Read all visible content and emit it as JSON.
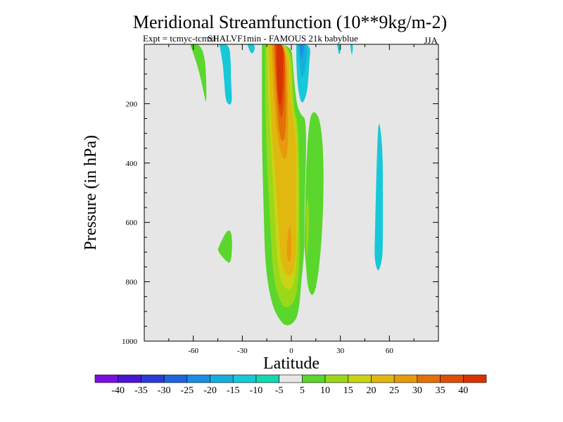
{
  "chart_data": {
    "type": "contour",
    "title": "Meridional Streamfunction (10**9kg/m-2)",
    "subtitle_left": "Expt = tcmyc-tcmxl",
    "subtitle_center": "SHALVF1min - FAMOUS 21k babyblue",
    "season": "JJA",
    "xlabel": "Latitude",
    "ylabel": "Pressure (in hPa)",
    "xlim": [
      -90,
      90
    ],
    "ylim": [
      1000,
      0
    ],
    "x_ticks": [
      -60,
      -30,
      0,
      30,
      60
    ],
    "y_ticks": [
      200,
      400,
      600,
      800,
      1000
    ],
    "background_color": "#e6e6e6",
    "colorbar": {
      "labels": [
        "-40",
        "-35",
        "-30",
        "-25",
        "-20",
        "-15",
        "-10",
        "-5",
        "5",
        "10",
        "15",
        "20",
        "25",
        "30",
        "35",
        "40"
      ],
      "colors": [
        "#7a10e0",
        "#4a16d2",
        "#2a3bd8",
        "#1e64e0",
        "#1a8ee6",
        "#17aede",
        "#16c8d8",
        "#14d8b2",
        "#e6e6e6",
        "#5ad62c",
        "#9ad81a",
        "#c8d414",
        "#e0b810",
        "#e69a0c",
        "#e47008",
        "#e04e06",
        "#d83200"
      ]
    },
    "features": [
      {
        "name": "main positive cell",
        "lat_range": [
          -15,
          10
        ],
        "p_range": [
          950,
          0
        ],
        "max_level": 40
      },
      {
        "name": "secondary max",
        "lat": -3,
        "p": 670,
        "level": 20
      },
      {
        "name": "positive band NH",
        "lat_range": [
          10,
          22
        ],
        "p_range": [
          850,
          220
        ],
        "level": 5
      },
      {
        "name": "negative band 55N",
        "lat_range": [
          52,
          56
        ],
        "p_range": [
          770,
          260
        ],
        "level": -10
      },
      {
        "name": "negative cell near equator top",
        "lat_range": [
          3,
          12
        ],
        "p_range": [
          200,
          0
        ],
        "min_level": -20
      },
      {
        "name": "positive cell 50S top",
        "lat_range": [
          -58,
          -52
        ],
        "p_range": [
          210,
          0
        ],
        "level": 5
      },
      {
        "name": "negative cell 40S top",
        "lat_range": [
          -42,
          -36
        ],
        "p_range": [
          205,
          0
        ],
        "level": -10
      },
      {
        "name": "positive cell 40S mid",
        "lat_range": [
          -45,
          -37
        ],
        "p_range": [
          740,
          620
        ],
        "level": 5
      }
    ]
  }
}
